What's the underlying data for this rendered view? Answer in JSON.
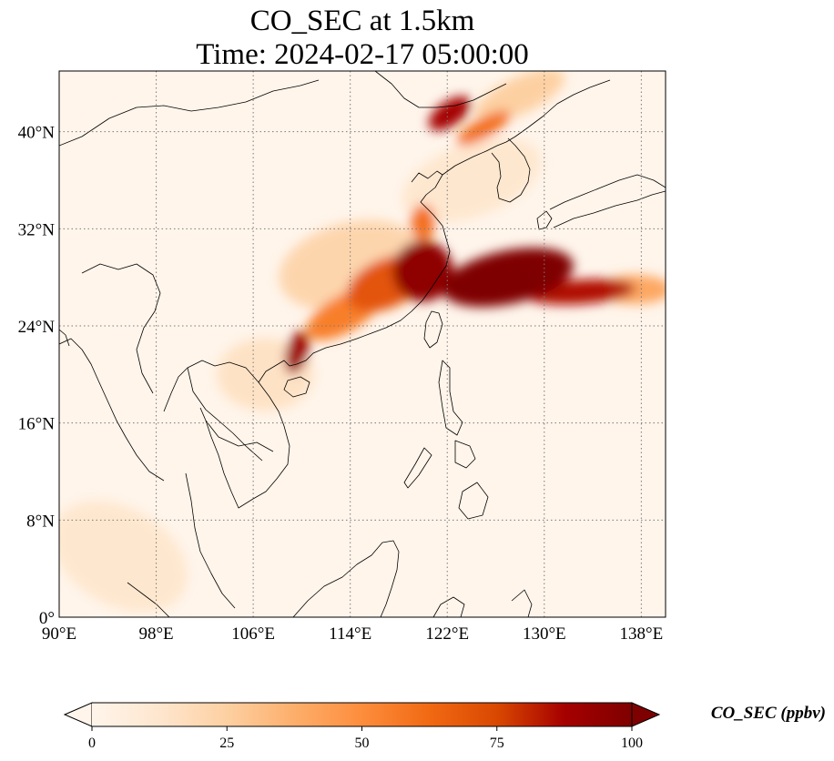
{
  "title_line1": "CO_SEC at 1.5km",
  "title_line2": "Time: 2024-02-17 05:00:00",
  "map": {
    "lon_range": [
      90,
      140
    ],
    "lat_range": [
      0,
      45
    ],
    "lon_ticks": [
      {
        "value": 90,
        "label": "90°E"
      },
      {
        "value": 98,
        "label": "98°E"
      },
      {
        "value": 106,
        "label": "106°E"
      },
      {
        "value": 114,
        "label": "114°E"
      },
      {
        "value": 122,
        "label": "122°E"
      },
      {
        "value": 130,
        "label": "130°E"
      },
      {
        "value": 138,
        "label": "138°E"
      }
    ],
    "lat_ticks": [
      {
        "value": 0,
        "label": "0°"
      },
      {
        "value": 8,
        "label": "8°N"
      },
      {
        "value": 16,
        "label": "16°N"
      },
      {
        "value": 24,
        "label": "24°N"
      },
      {
        "value": 32,
        "label": "32°N"
      },
      {
        "value": 40,
        "label": "40°N"
      }
    ],
    "gridlines": "dotted",
    "background_color": "#fff5eb",
    "coastline_color": "#000000"
  },
  "colorbar": {
    "colormap": "OrRd",
    "range": [
      0,
      100
    ],
    "extend": "both",
    "ticks": [
      {
        "value": 0,
        "label": "0"
      },
      {
        "value": 25,
        "label": "25"
      },
      {
        "value": 50,
        "label": "50"
      },
      {
        "value": 75,
        "label": "75"
      },
      {
        "value": 100,
        "label": "100"
      }
    ],
    "label": "CO_SEC (ppbv)",
    "colors": [
      "#fff5eb",
      "#fee6ce",
      "#fdd0a2",
      "#fdae6b",
      "#fd8d3c",
      "#f16913",
      "#d94801",
      "#a60000",
      "#7f0000"
    ]
  },
  "plume_regions": [
    {
      "lon": 127,
      "lat": 28,
      "rx": 5.5,
      "ry": 2.2,
      "rot": -12,
      "value": 100
    },
    {
      "lon": 133,
      "lat": 26.8,
      "rx": 4.5,
      "ry": 1.0,
      "rot": -4,
      "value": 85
    },
    {
      "lon": 137.5,
      "lat": 27,
      "rx": 3,
      "ry": 1.2,
      "rot": 0,
      "value": 40
    },
    {
      "lon": 120,
      "lat": 28.5,
      "rx": 2.5,
      "ry": 2.5,
      "rot": 0,
      "value": 95
    },
    {
      "lon": 117,
      "lat": 27.5,
      "rx": 3.5,
      "ry": 2.0,
      "rot": -25,
      "value": 70
    },
    {
      "lon": 113.5,
      "lat": 25,
      "rx": 3.5,
      "ry": 1.5,
      "rot": -30,
      "value": 55
    },
    {
      "lon": 109.6,
      "lat": 21.8,
      "rx": 0.9,
      "ry": 1.8,
      "rot": 15,
      "value": 90
    },
    {
      "lon": 120,
      "lat": 32.5,
      "rx": 1.0,
      "ry": 1.5,
      "rot": 0,
      "value": 60
    },
    {
      "lon": 122.2,
      "lat": 41.5,
      "rx": 2.0,
      "ry": 1.0,
      "rot": -35,
      "value": 88
    },
    {
      "lon": 125,
      "lat": 40.3,
      "rx": 2.5,
      "ry": 0.8,
      "rot": -30,
      "value": 60
    },
    {
      "lon": 128,
      "lat": 43,
      "rx": 4,
      "ry": 1.5,
      "rot": -25,
      "value": 25
    },
    {
      "lon": 124,
      "lat": 36,
      "rx": 6,
      "ry": 3,
      "rot": -20,
      "value": 12
    },
    {
      "lon": 107,
      "lat": 20,
      "rx": 4,
      "ry": 3,
      "rot": 0,
      "value": 15
    },
    {
      "lon": 95,
      "lat": 5,
      "rx": 6,
      "ry": 4,
      "rot": 30,
      "value": 12
    },
    {
      "lon": 114,
      "lat": 29,
      "rx": 6,
      "ry": 3.5,
      "rot": -15,
      "value": 22
    }
  ]
}
